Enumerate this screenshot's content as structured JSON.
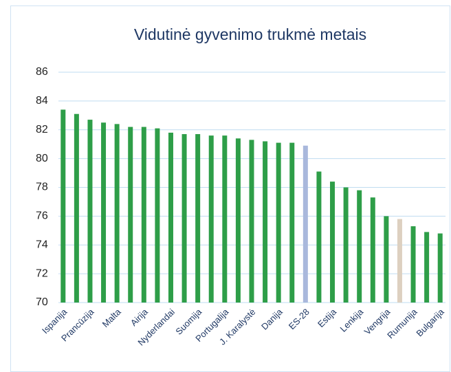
{
  "chart_data": {
    "type": "bar",
    "title": "Vidutinė gyvenimo trukmė metais",
    "categories": [
      "Ispanija",
      null,
      "Prancūzija",
      null,
      "Malta",
      null,
      "Airija",
      null,
      "Nyderlandai",
      null,
      "Suomija",
      null,
      "Portugalija",
      null,
      "J. Karalystė",
      null,
      "Danija",
      null,
      "ES-28",
      null,
      "Estija",
      null,
      "Lenkija",
      null,
      "Vengrija",
      null,
      "Rumunija",
      null,
      "Bulgarija"
    ],
    "values": [
      83.4,
      83.1,
      82.7,
      82.5,
      82.4,
      82.2,
      82.2,
      82.1,
      81.8,
      81.7,
      81.7,
      81.6,
      81.6,
      81.4,
      81.3,
      81.2,
      81.1,
      81.1,
      80.9,
      79.1,
      78.4,
      78.0,
      77.8,
      77.3,
      76.0,
      75.8,
      75.3,
      74.9,
      74.8
    ],
    "colors": [
      "#2e9e48",
      "#2e9e48",
      "#2e9e48",
      "#2e9e48",
      "#2e9e48",
      "#2e9e48",
      "#2e9e48",
      "#2e9e48",
      "#2e9e48",
      "#2e9e48",
      "#2e9e48",
      "#2e9e48",
      "#2e9e48",
      "#2e9e48",
      "#2e9e48",
      "#2e9e48",
      "#2e9e48",
      "#2e9e48",
      "#a9b8dc",
      "#2e9e48",
      "#2e9e48",
      "#2e9e48",
      "#2e9e48",
      "#2e9e48",
      "#2e9e48",
      "#ddd0c0",
      "#2e9e48",
      "#2e9e48",
      "#2e9e48"
    ],
    "ylim": [
      70,
      86
    ],
    "yticks": [
      70,
      72,
      74,
      76,
      78,
      80,
      82,
      84,
      86
    ],
    "grid": true
  }
}
